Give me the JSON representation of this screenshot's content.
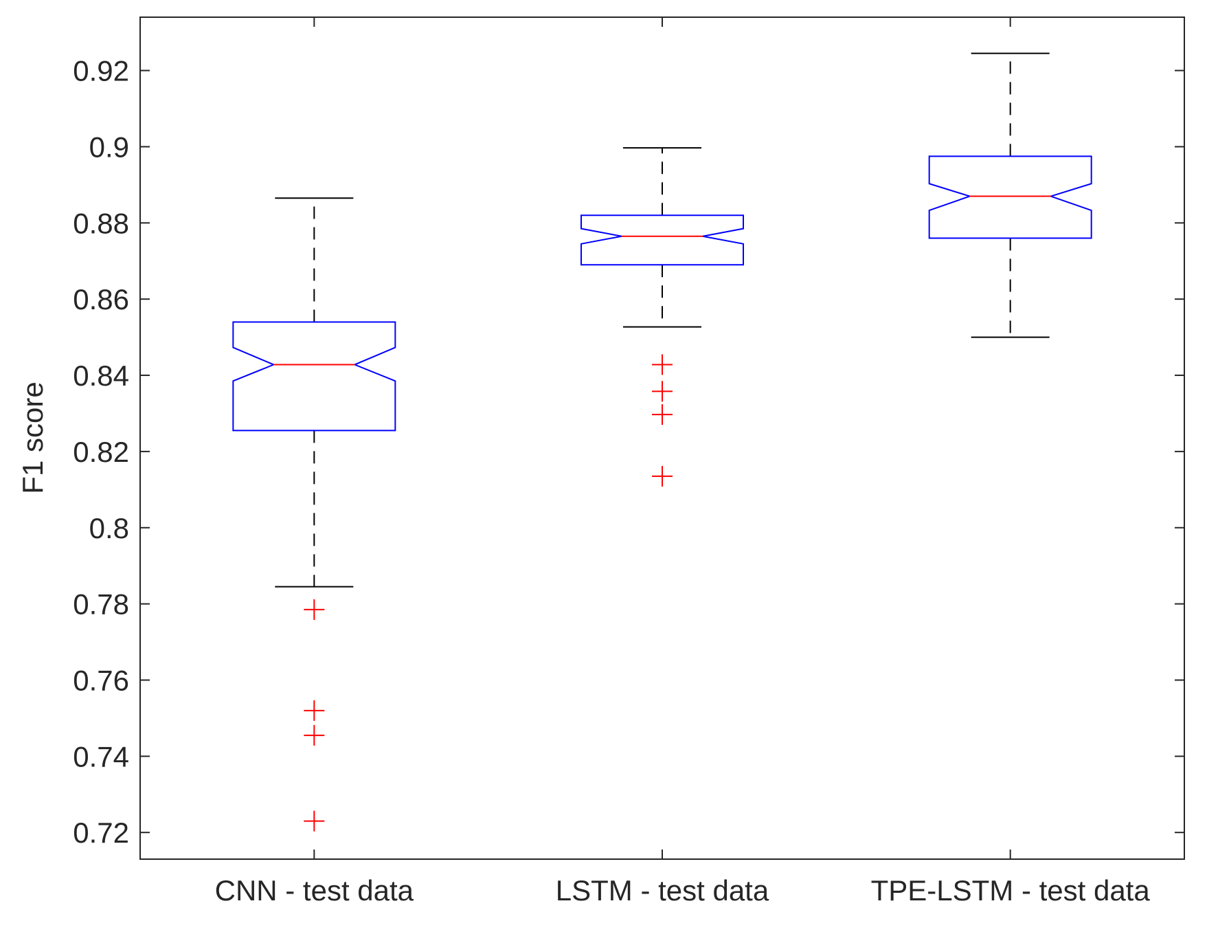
{
  "chart_data": {
    "type": "boxplot",
    "notched": true,
    "title": "",
    "xlabel": "",
    "ylabel": "F1 score",
    "ylim": [
      0.713,
      0.934
    ],
    "yticks": [
      0.72,
      0.74,
      0.76,
      0.78,
      0.8,
      0.82,
      0.84,
      0.86,
      0.88,
      0.9,
      0.92
    ],
    "ytick_labels": [
      "0.72",
      "0.74",
      "0.76",
      "0.78",
      "0.8",
      "0.82",
      "0.84",
      "0.86",
      "0.88",
      "0.9",
      "0.92"
    ],
    "grid": false,
    "colors": {
      "box": "#0000ff",
      "median": "#ff0000",
      "whisker": "#000000",
      "outlier": "#ff0000",
      "axis": "#262626"
    },
    "categories": [
      "CNN - test data",
      "LSTM - test data",
      "TPE-LSTM - test data"
    ],
    "boxes": [
      {
        "category": "CNN - test data",
        "whisker_low": 0.7845,
        "q1": 0.8255,
        "notch_low": 0.8385,
        "median": 0.8428,
        "notch_high": 0.8473,
        "q3": 0.854,
        "whisker_high": 0.8865,
        "outliers": [
          0.7785,
          0.752,
          0.7455,
          0.723
        ]
      },
      {
        "category": "LSTM - test data",
        "whisker_low": 0.8527,
        "q1": 0.869,
        "notch_low": 0.8745,
        "median": 0.8765,
        "notch_high": 0.8785,
        "q3": 0.882,
        "whisker_high": 0.8997,
        "outliers": [
          0.8428,
          0.8358,
          0.8297,
          0.8135
        ]
      },
      {
        "category": "TPE-LSTM - test data",
        "whisker_low": 0.85,
        "q1": 0.876,
        "notch_low": 0.8833,
        "median": 0.887,
        "notch_high": 0.8903,
        "q3": 0.8975,
        "whisker_high": 0.9245,
        "outliers": []
      }
    ]
  }
}
